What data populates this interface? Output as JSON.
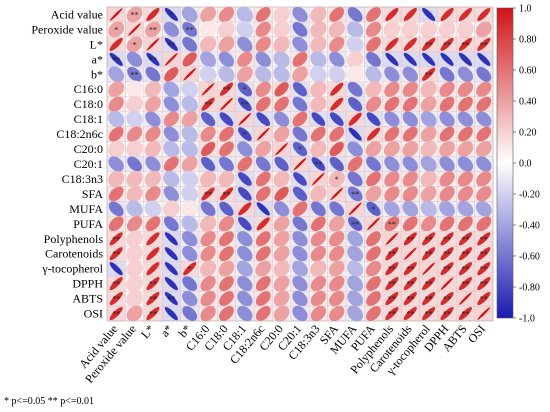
{
  "chart_data": {
    "type": "heatmap",
    "variables": [
      "Acid value",
      "Peroxide value",
      "L*",
      "a*",
      "b*",
      "C16:0",
      "C18:0",
      "C18:1",
      "C18:2n6c",
      "C20:0",
      "C20:1",
      "C18:3n3",
      "SFA",
      "MUFA",
      "PUFA",
      "Polyphenols",
      "Carotenoids",
      "γ-tocopherol",
      "DPPH",
      "ABTS",
      "OSI"
    ],
    "colorbar": {
      "min": -1.0,
      "max": 1.0,
      "ticks": [
        "1.0",
        "0.80",
        "0.60",
        "0.40",
        "0.20",
        "0.0",
        "-0.20",
        "-0.40",
        "-0.60",
        "-0.80",
        "-1.0"
      ]
    },
    "colors": {
      "positive": "#d01418",
      "negative": "#1a1ab0",
      "neutral": "#ffffff"
    },
    "grid": true,
    "legend": "right",
    "matrix": [
      [
        1,
        0.4,
        0.9,
        -0.9,
        -0.4,
        0.4,
        0.5,
        -0.3,
        0.6,
        0.2,
        -0.5,
        0.3,
        0.6,
        -0.6,
        0.6,
        0.9,
        0.9,
        -0.9,
        0.9,
        0.9,
        0.9
      ],
      [
        0.4,
        1,
        0.4,
        -0.5,
        -0.6,
        0.1,
        0.2,
        -0.2,
        0.5,
        0.2,
        -0.6,
        0.3,
        0.3,
        -0.3,
        0.5,
        0.2,
        0.2,
        0.2,
        0.2,
        0.2,
        0.4
      ],
      [
        0.9,
        0.4,
        1,
        -0.9,
        -0.6,
        0.3,
        0.4,
        -0.5,
        0.5,
        0.3,
        -0.5,
        0.3,
        0.5,
        -0.2,
        0.6,
        0.9,
        0.9,
        0.9,
        0.9,
        0.9,
        0.9
      ],
      [
        -0.9,
        -0.5,
        -0.9,
        1,
        0.7,
        -0.4,
        -0.5,
        0.5,
        -0.5,
        -0.3,
        0.6,
        -0.3,
        -0.5,
        0.2,
        -0.6,
        -0.9,
        -0.9,
        -0.9,
        -0.9,
        -0.9,
        -0.9
      ],
      [
        -0.4,
        -0.6,
        -0.6,
        0.7,
        1,
        -0.2,
        -0.3,
        0.4,
        -0.3,
        -0.3,
        0.4,
        -0.2,
        -0.2,
        0.1,
        -0.3,
        -0.5,
        -0.5,
        0.9,
        -0.6,
        -0.5,
        -0.6
      ],
      [
        0.4,
        0.1,
        0.3,
        -0.4,
        -0.2,
        1,
        0.9,
        -0.7,
        0.5,
        0.7,
        -0.7,
        0.3,
        0.9,
        -0.6,
        0.3,
        0.5,
        0.5,
        0.3,
        0.5,
        0.5,
        0.5
      ],
      [
        0.5,
        0.2,
        0.4,
        -0.5,
        -0.3,
        0.9,
        1,
        -0.8,
        0.6,
        0.6,
        -0.6,
        0.3,
        0.9,
        -0.7,
        0.5,
        0.6,
        0.6,
        0.4,
        0.6,
        0.6,
        0.6
      ],
      [
        -0.3,
        -0.2,
        -0.5,
        0.5,
        0.4,
        -0.7,
        -0.8,
        1,
        -0.8,
        -0.5,
        0.6,
        -0.8,
        -0.8,
        0.9,
        -0.8,
        -0.5,
        -0.5,
        -0.4,
        -0.5,
        -0.5,
        -0.5
      ],
      [
        0.6,
        0.5,
        0.5,
        -0.5,
        -0.3,
        0.5,
        0.6,
        -0.8,
        1,
        0.4,
        -0.6,
        0.6,
        0.6,
        -0.9,
        0.9,
        0.6,
        0.6,
        0.4,
        0.6,
        0.6,
        0.6
      ],
      [
        0.2,
        0.2,
        0.3,
        -0.3,
        -0.3,
        0.7,
        0.6,
        -0.5,
        0.4,
        1,
        -0.7,
        0.3,
        0.7,
        -0.5,
        0.4,
        0.4,
        0.4,
        0.3,
        0.4,
        0.4,
        0.4
      ],
      [
        -0.5,
        -0.6,
        -0.5,
        0.6,
        0.4,
        -0.7,
        -0.6,
        0.6,
        -0.6,
        -0.7,
        1,
        -0.8,
        -0.7,
        0.6,
        -0.6,
        -0.5,
        -0.5,
        -0.4,
        -0.5,
        -0.5,
        -0.5
      ],
      [
        0.3,
        0.3,
        0.3,
        -0.3,
        -0.2,
        0.3,
        0.3,
        -0.8,
        0.6,
        0.3,
        -0.8,
        1,
        0.3,
        -0.6,
        0.6,
        0.5,
        0.5,
        0.3,
        0.5,
        0.5,
        0.5
      ],
      [
        0.6,
        0.3,
        0.5,
        -0.5,
        -0.2,
        0.9,
        0.9,
        -0.8,
        0.6,
        0.7,
        -0.7,
        0.3,
        1,
        -0.6,
        0.4,
        0.5,
        0.5,
        0.4,
        0.5,
        0.5,
        0.5
      ],
      [
        -0.6,
        -0.3,
        -0.2,
        0.2,
        0.1,
        -0.6,
        -0.7,
        0.9,
        -0.9,
        -0.5,
        0.6,
        -0.6,
        -0.6,
        1,
        -0.7,
        -0.4,
        -0.4,
        -0.3,
        -0.4,
        -0.4,
        -0.4
      ],
      [
        0.6,
        0.5,
        0.6,
        -0.6,
        -0.3,
        0.3,
        0.5,
        -0.8,
        0.9,
        0.4,
        -0.6,
        0.6,
        0.4,
        -0.7,
        1,
        0.6,
        0.6,
        0.5,
        0.6,
        0.6,
        0.6
      ],
      [
        0.9,
        0.2,
        0.9,
        -0.9,
        -0.5,
        0.5,
        0.6,
        -0.5,
        0.6,
        0.4,
        -0.5,
        0.5,
        0.5,
        -0.4,
        0.6,
        1,
        0.9,
        0.9,
        0.9,
        0.9,
        0.9
      ],
      [
        0.9,
        0.2,
        0.9,
        -0.9,
        -0.5,
        0.5,
        0.6,
        -0.5,
        0.6,
        0.4,
        -0.5,
        0.5,
        0.5,
        -0.4,
        0.6,
        0.9,
        1,
        0.9,
        0.9,
        0.9,
        0.9
      ],
      [
        -0.9,
        0.2,
        0.9,
        -0.9,
        0.9,
        0.3,
        0.4,
        -0.4,
        0.4,
        0.3,
        -0.4,
        0.3,
        0.4,
        -0.3,
        0.5,
        0.9,
        0.9,
        1,
        0.9,
        0.9,
        0.9
      ],
      [
        0.9,
        0.2,
        0.9,
        -0.9,
        -0.6,
        0.5,
        0.6,
        -0.5,
        0.6,
        0.4,
        -0.5,
        0.5,
        0.5,
        -0.4,
        0.6,
        0.9,
        0.9,
        0.9,
        1,
        0.9,
        0.9
      ],
      [
        0.9,
        0.2,
        0.9,
        -0.9,
        -0.5,
        0.5,
        0.6,
        -0.5,
        0.6,
        0.4,
        -0.5,
        0.5,
        0.5,
        -0.4,
        0.6,
        0.9,
        0.9,
        0.9,
        0.9,
        1,
        0.9
      ],
      [
        0.9,
        0.4,
        0.9,
        -0.9,
        -0.6,
        0.5,
        0.6,
        -0.5,
        0.6,
        0.4,
        -0.5,
        0.5,
        0.5,
        -0.4,
        0.6,
        0.9,
        0.9,
        0.9,
        0.9,
        0.9,
        1
      ]
    ],
    "significance": [
      [
        "",
        "**",
        "",
        "*",
        "",
        "",
        "",
        "",
        "",
        "",
        "",
        "",
        "",
        "",
        "",
        "",
        "",
        "",
        "",
        "",
        ""
      ],
      [
        "*",
        "",
        "**",
        "",
        "**",
        "",
        "",
        "",
        "",
        "",
        "",
        "",
        "",
        "",
        "",
        "",
        "",
        "",
        "",
        "",
        ""
      ],
      [
        "",
        "*",
        "",
        "**",
        "",
        "",
        "",
        "",
        "",
        "",
        "",
        "",
        "",
        "",
        "",
        "",
        "",
        "**",
        "**",
        "**",
        "**"
      ],
      [
        "**",
        "",
        "**",
        "",
        "",
        "",
        "",
        "",
        "",
        "",
        "",
        "",
        "",
        "",
        "",
        "",
        "",
        "",
        "",
        "",
        ""
      ],
      [
        "",
        "**",
        "",
        "",
        "",
        "",
        "",
        "",
        "",
        "",
        "",
        "",
        "",
        "",
        "",
        "",
        "",
        "**",
        "",
        "",
        ""
      ],
      [
        "",
        "",
        "",
        "",
        "",
        "",
        "**",
        "*",
        "",
        "",
        "",
        "",
        "",
        "",
        "",
        "",
        "",
        "",
        "",
        "",
        ""
      ],
      [
        "",
        "",
        "",
        "",
        "",
        "**",
        "",
        "**",
        "",
        "",
        "",
        "",
        "",
        "",
        "",
        "",
        "",
        "",
        "",
        "",
        ""
      ],
      [
        "",
        "",
        "",
        "",
        "",
        "",
        "",
        "",
        "",
        "",
        "",
        "",
        "",
        "",
        "",
        "",
        "",
        "",
        "",
        "",
        ""
      ],
      [
        "",
        "",
        "",
        "",
        "",
        "",
        "",
        "*",
        "",
        "",
        "",
        "",
        "",
        "",
        "",
        "",
        "",
        "",
        "",
        "",
        ""
      ],
      [
        "",
        "",
        "",
        "",
        "",
        "",
        "",
        "",
        "",
        "",
        "*",
        "",
        "",
        "",
        "",
        "",
        "",
        "",
        "",
        "",
        ""
      ],
      [
        "",
        "",
        "",
        "",
        "",
        "",
        "",
        "",
        "",
        "",
        "",
        "**",
        "",
        "",
        "",
        "",
        "",
        "",
        "",
        "",
        ""
      ],
      [
        "",
        "",
        "",
        "",
        "",
        "",
        "",
        "",
        "",
        "",
        "",
        "",
        "*",
        "",
        "",
        "",
        "",
        "",
        "",
        "",
        ""
      ],
      [
        "",
        "",
        "",
        "",
        "",
        "**",
        "**",
        "",
        "",
        "",
        "",
        "",
        "",
        "**",
        "",
        "",
        "",
        "",
        "",
        "",
        ""
      ],
      [
        "",
        "",
        "",
        "",
        "",
        "",
        "",
        "",
        "",
        "",
        "",
        "",
        "",
        "",
        "*",
        "",
        "",
        "",
        "",
        "",
        ""
      ],
      [
        "",
        "",
        "",
        "",
        "",
        "",
        "",
        "",
        "",
        "",
        "",
        "",
        "",
        "**",
        "",
        "**",
        "",
        "",
        "",
        "",
        ""
      ],
      [
        "**",
        "",
        "",
        "",
        "",
        "",
        "",
        "",
        "",
        "",
        "",
        "",
        "",
        "",
        "",
        "",
        "**",
        "**",
        "**",
        "**",
        "**"
      ],
      [
        "**",
        "",
        "",
        "",
        "",
        "",
        "",
        "",
        "",
        "",
        "",
        "",
        "",
        "",
        "",
        "**",
        "",
        "**",
        "**",
        "**",
        "**"
      ],
      [
        "",
        "",
        "",
        "",
        "*",
        "",
        "",
        "",
        "",
        "",
        "",
        "",
        "",
        "",
        "",
        "**",
        "**",
        "",
        "**",
        "**",
        "**"
      ],
      [
        "**",
        "",
        "**",
        "",
        "",
        "",
        "",
        "",
        "",
        "",
        "",
        "",
        "",
        "",
        "",
        "**",
        "**",
        "**",
        "",
        "**",
        "**"
      ],
      [
        "**",
        "",
        "**",
        "**",
        "",
        "",
        "",
        "",
        "",
        "",
        "",
        "",
        "",
        "",
        "",
        "**",
        "**",
        "**",
        "**",
        "",
        "**"
      ],
      [
        "**",
        "",
        "**",
        "",
        "",
        "",
        "",
        "",
        "",
        "",
        "",
        "",
        "",
        "",
        "",
        "**",
        "**",
        "**",
        "**",
        "**",
        ""
      ]
    ]
  },
  "footnote": "* p<=0.05  ** p<=0.01"
}
